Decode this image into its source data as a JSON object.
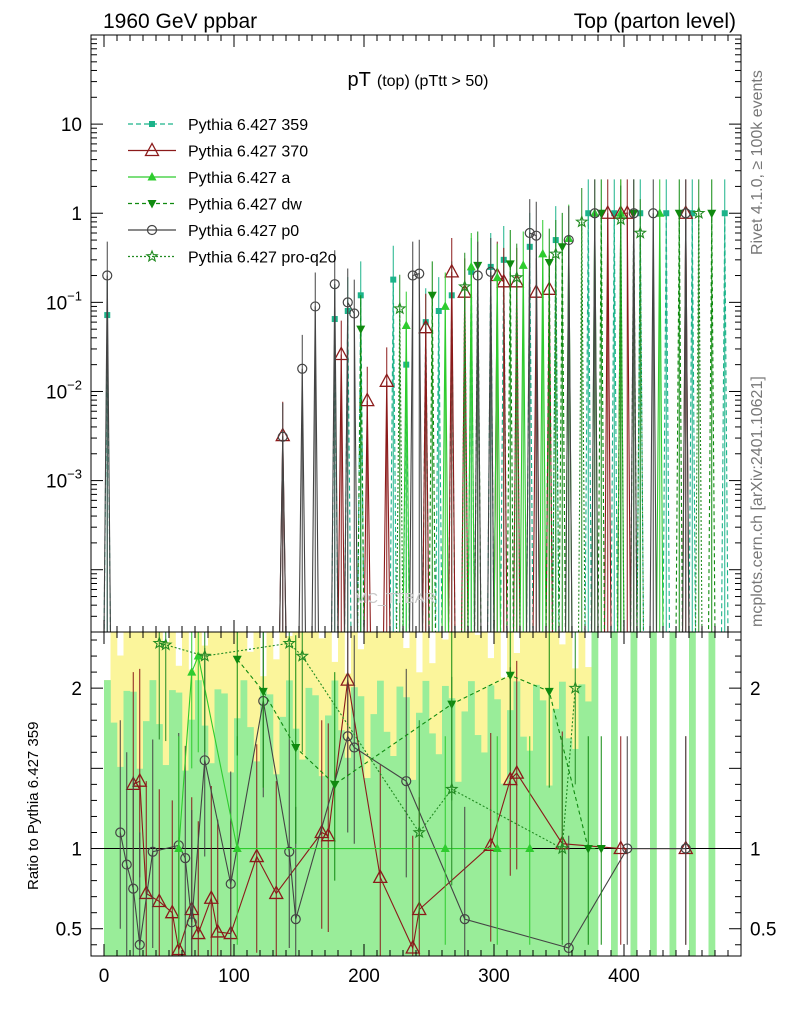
{
  "header": {
    "left": "1960 GeV ppbar",
    "right": "Top (parton level)"
  },
  "side_text": {
    "rivet": "Rivet 4.1.0, ≥ 100k events",
    "mcplots": "mcplots.cern.ch [arXiv:2401.10621]"
  },
  "watermark": "MC_TTBAR",
  "chart_data": {
    "type": "scatter",
    "title_main": "pT",
    "title_sub": "(top) (pTtt > 50)",
    "x_ticks": [
      "0",
      "100",
      "200",
      "300",
      "400"
    ],
    "xlim": [
      -10,
      490
    ],
    "top_panel": {
      "yscale": "log",
      "ylim": [
        2e-05,
        100
      ],
      "y_ticks": [
        {
          "base": "10",
          "exp": "−3",
          "value": 0.001
        },
        {
          "base": "10",
          "exp": "−2",
          "value": 0.01
        },
        {
          "base": "10",
          "exp": "−1",
          "value": 0.1
        },
        {
          "base": "1",
          "exp": "",
          "value": 1
        },
        {
          "base": "10",
          "exp": "",
          "value": 10
        }
      ]
    },
    "ratio_panel": {
      "ylabel": "Ratio to Pythia 6.427 359",
      "ylim": [
        0.33,
        2.35
      ],
      "y_ticks": [
        "0.5",
        "1",
        "2"
      ],
      "y_tick_values": [
        0.5,
        1,
        2
      ],
      "reference_line": 1
    },
    "legend": [
      {
        "name": "Pythia 6.427 359",
        "color": "#1cb38a",
        "marker": "square",
        "dash": "5,3"
      },
      {
        "name": "Pythia 6.427 370",
        "color": "#8b1a1a",
        "marker": "triangle-open",
        "dash": ""
      },
      {
        "name": "Pythia 6.427 a",
        "color": "#2ecc2e",
        "marker": "triangle",
        "dash": ""
      },
      {
        "name": "Pythia 6.427 dw",
        "color": "#0f8a0f",
        "marker": "triangle-down",
        "dash": "4,3"
      },
      {
        "name": "Pythia 6.427 p0",
        "color": "#444444",
        "marker": "circle-open",
        "dash": ""
      },
      {
        "name": "Pythia 6.427 pro-q2o",
        "color": "#228b22",
        "marker": "star",
        "dash": "2,2"
      }
    ],
    "series": [
      {
        "name": "Pythia 6.427 359",
        "points": [
          [
            2.5,
            0.072
          ],
          [
            177.5,
            0.065
          ],
          [
            187.5,
            0.08
          ],
          [
            197.5,
            0.12
          ],
          [
            222.5,
            0.18
          ],
          [
            232.5,
            0.02
          ],
          [
            247.5,
            0.06
          ],
          [
            257.5,
            0.08
          ],
          [
            267.5,
            0.12
          ],
          [
            282.5,
            0.22
          ],
          [
            297.5,
            0.25
          ],
          [
            307.5,
            0.3
          ],
          [
            327.5,
            0.42
          ],
          [
            347.5,
            0.5
          ],
          [
            372.5,
            1.0
          ],
          [
            392.5,
            1.0
          ],
          [
            412.5,
            1.0
          ],
          [
            432.5,
            1.0
          ],
          [
            452.5,
            1.0
          ],
          [
            477.5,
            1.0
          ]
        ]
      },
      {
        "name": "Pythia 6.427 370",
        "points": [
          [
            137.5,
            0.0032
          ],
          [
            182.5,
            0.026
          ],
          [
            202.5,
            0.0079
          ],
          [
            217.5,
            0.013
          ],
          [
            247.5,
            0.052
          ],
          [
            267.5,
            0.22
          ],
          [
            277.5,
            0.13
          ],
          [
            302.5,
            0.2
          ],
          [
            307.5,
            0.17
          ],
          [
            317.5,
            0.17
          ],
          [
            332.5,
            0.13
          ],
          [
            342.5,
            0.14
          ],
          [
            387.5,
            1.0
          ],
          [
            397.5,
            1.0
          ],
          [
            402.5,
            1.0
          ],
          [
            447.5,
            1.0
          ]
        ]
      },
      {
        "name": "Pythia 6.427 a",
        "points": [
          [
            232.5,
            0.055
          ],
          [
            262.5,
            0.09
          ],
          [
            282.5,
            0.25
          ],
          [
            302.5,
            0.19
          ],
          [
            322.5,
            0.26
          ],
          [
            337.5,
            0.35
          ],
          [
            357.5,
            0.52
          ],
          [
            377.5,
            1.0
          ],
          [
            397.5,
            1.0
          ],
          [
            427.5,
            1.0
          ]
        ]
      },
      {
        "name": "Pythia 6.427 dw",
        "points": [
          [
            197.5,
            0.05
          ],
          [
            252.5,
            0.12
          ],
          [
            287.5,
            0.26
          ],
          [
            312.5,
            0.27
          ],
          [
            342.5,
            0.28
          ],
          [
            352.5,
            0.42
          ],
          [
            382.5,
            1.0
          ],
          [
            407.5,
            1.0
          ],
          [
            442.5,
            1.0
          ],
          [
            467.5,
            1.0
          ]
        ]
      },
      {
        "name": "Pythia 6.427 p0",
        "points": [
          [
            2.5,
            0.2
          ],
          [
            137.5,
            0.0031
          ],
          [
            152.5,
            0.018
          ],
          [
            162.5,
            0.09
          ],
          [
            177.5,
            0.16
          ],
          [
            187.5,
            0.1
          ],
          [
            192.5,
            0.075
          ],
          [
            237.5,
            0.2
          ],
          [
            242.5,
            0.21
          ],
          [
            287.5,
            0.2
          ],
          [
            297.5,
            0.22
          ],
          [
            327.5,
            0.6
          ],
          [
            332.5,
            0.56
          ],
          [
            357.5,
            0.5
          ],
          [
            377.5,
            1.0
          ],
          [
            407.5,
            1.0
          ],
          [
            422.5,
            1.0
          ],
          [
            447.5,
            1.0
          ]
        ]
      },
      {
        "name": "Pythia 6.427 pro-q2o",
        "points": [
          [
            227.5,
            0.085
          ],
          [
            277.5,
            0.15
          ],
          [
            317.5,
            0.19
          ],
          [
            347.5,
            0.35
          ],
          [
            367.5,
            0.8
          ],
          [
            397.5,
            0.85
          ],
          [
            412.5,
            0.6
          ],
          [
            457.5,
            1.0
          ]
        ]
      }
    ],
    "ratio_series": [
      {
        "name": "Pythia 6.427 370",
        "points": [
          [
            22.5,
            1.4
          ],
          [
            27.5,
            1.42
          ],
          [
            32.5,
            0.72
          ],
          [
            42.5,
            0.67
          ],
          [
            52.5,
            0.6
          ],
          [
            57.5,
            0.37
          ],
          [
            67.5,
            0.62
          ],
          [
            72.5,
            0.47
          ],
          [
            82.5,
            0.69
          ],
          [
            87.5,
            0.48
          ],
          [
            97.5,
            0.47
          ],
          [
            117.5,
            0.95
          ],
          [
            132.5,
            0.72
          ],
          [
            167.5,
            1.1
          ],
          [
            172.5,
            1.08
          ],
          [
            187.5,
            2.05
          ],
          [
            212.5,
            0.82
          ],
          [
            237.5,
            0.38
          ],
          [
            242.5,
            0.62
          ],
          [
            297.5,
            1.02
          ],
          [
            312.5,
            1.43
          ],
          [
            317.5,
            1.47
          ],
          [
            352.5,
            1.03
          ],
          [
            397.5,
            1.0
          ],
          [
            447.5,
            1.0
          ]
        ]
      },
      {
        "name": "Pythia 6.427 p0",
        "points": [
          [
            12.5,
            1.1
          ],
          [
            17.5,
            0.9
          ],
          [
            22.5,
            0.75
          ],
          [
            27.5,
            0.4
          ],
          [
            37.5,
            0.98
          ],
          [
            57.5,
            1.02
          ],
          [
            62.5,
            0.94
          ],
          [
            67.5,
            0.54
          ],
          [
            77.5,
            1.55
          ],
          [
            97.5,
            0.78
          ],
          [
            122.5,
            1.92
          ],
          [
            142.5,
            0.98
          ],
          [
            147.5,
            0.56
          ],
          [
            187.5,
            1.7
          ],
          [
            192.5,
            1.63
          ],
          [
            232.5,
            1.42
          ],
          [
            277.5,
            0.56
          ],
          [
            357.5,
            0.38
          ],
          [
            402.5,
            1.0
          ],
          [
            447.5,
            1.0
          ]
        ]
      },
      {
        "name": "Pythia 6.427 a",
        "points": [
          [
            57.5,
            1.0
          ],
          [
            67.5,
            2.1
          ],
          [
            72.5,
            2.2
          ],
          [
            102.5,
            1.0
          ],
          [
            262.5,
            1.0
          ],
          [
            302.5,
            1.0
          ],
          [
            327.5,
            1.0
          ]
        ]
      },
      {
        "name": "Pythia 6.427 dw",
        "points": [
          [
            102.5,
            2.18
          ],
          [
            122.5,
            1.98
          ],
          [
            147.5,
            1.63
          ],
          [
            177.5,
            1.4
          ],
          [
            267.5,
            1.9
          ],
          [
            312.5,
            2.08
          ],
          [
            342.5,
            1.98
          ],
          [
            372.5,
            1.0
          ],
          [
            382.5,
            1.0
          ]
        ]
      },
      {
        "name": "Pythia 6.427 pro-q2o",
        "points": [
          [
            42.5,
            2.28
          ],
          [
            47.5,
            2.27
          ],
          [
            77.5,
            2.2
          ],
          [
            142.5,
            2.28
          ],
          [
            152.5,
            2.2
          ],
          [
            242.5,
            1.1
          ],
          [
            267.5,
            1.37
          ],
          [
            352.5,
            1.0
          ],
          [
            362.5,
            2.0
          ]
        ]
      }
    ]
  }
}
